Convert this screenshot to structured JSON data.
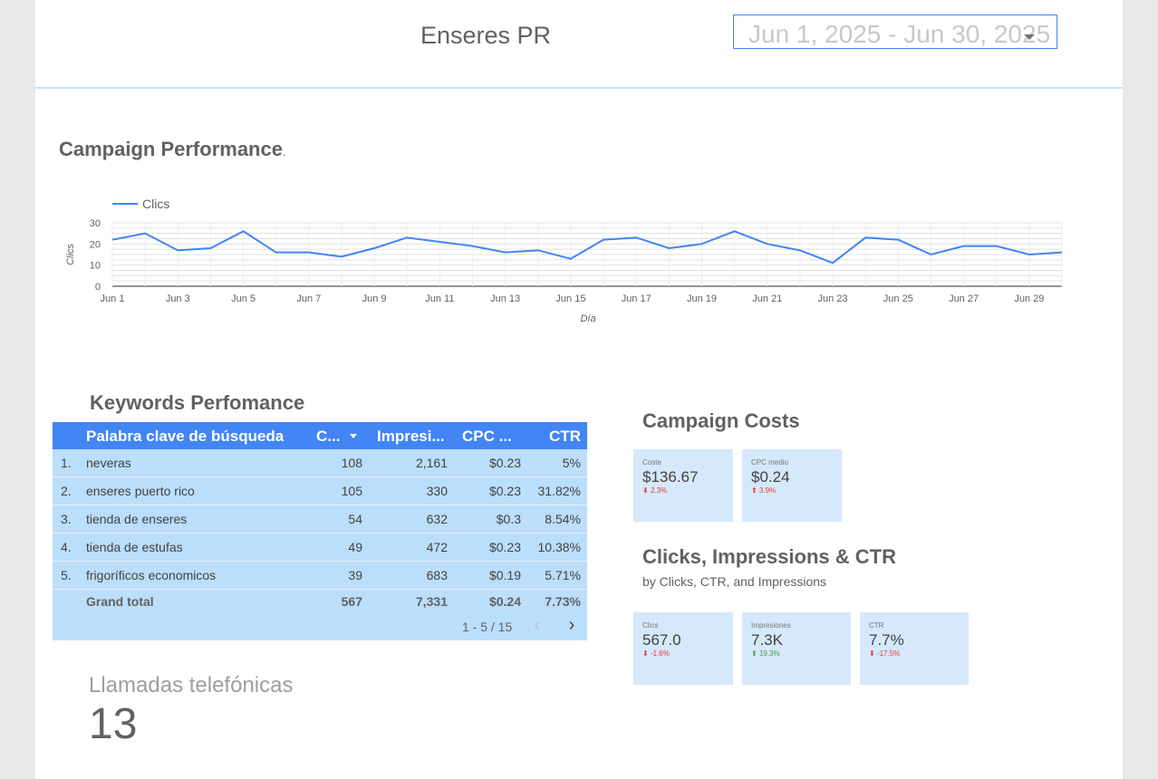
{
  "header": {
    "title": "Enseres PR",
    "date_range": "Jun 1, 2025 - Jun 30, 2025"
  },
  "performance": {
    "title": "Campaign Performance",
    "title_dot": "."
  },
  "chart_data": {
    "type": "line",
    "legend": "Clics",
    "ylabel": "Clics",
    "xlabel": "Día",
    "ylim": [
      0,
      30
    ],
    "yticks": [
      "0",
      "10",
      "20",
      "30"
    ],
    "x": [
      "Jun 1",
      "Jun 2",
      "Jun 3",
      "Jun 4",
      "Jun 5",
      "Jun 6",
      "Jun 7",
      "Jun 8",
      "Jun 9",
      "Jun 10",
      "Jun 11",
      "Jun 12",
      "Jun 13",
      "Jun 14",
      "Jun 15",
      "Jun 16",
      "Jun 17",
      "Jun 18",
      "Jun 19",
      "Jun 20",
      "Jun 21",
      "Jun 22",
      "Jun 23",
      "Jun 24",
      "Jun 25",
      "Jun 26",
      "Jun 27",
      "Jun 28",
      "Jun 29",
      "Jun 30"
    ],
    "xtick_labels": [
      "Jun 1",
      "Jun 3",
      "Jun 5",
      "Jun 7",
      "Jun 9",
      "Jun 11",
      "Jun 13",
      "Jun 15",
      "Jun 17",
      "Jun 19",
      "Jun 21",
      "Jun 23",
      "Jun 25",
      "Jun 27",
      "Jun 29"
    ],
    "series": [
      {
        "name": "Clics",
        "color": "#4285f4",
        "values": [
          22,
          25,
          17,
          18,
          26,
          16,
          16,
          14,
          18,
          23,
          21,
          19,
          16,
          17,
          13,
          22,
          23,
          18,
          20,
          26,
          20,
          17,
          11,
          23,
          22,
          15,
          19,
          19,
          15,
          16
        ]
      }
    ]
  },
  "keywords": {
    "title": "Keywords Perfomance",
    "columns": [
      "Palabra clave de búsqueda",
      "C...",
      "Impresi...",
      "CPC ...",
      "CTR"
    ],
    "rows": [
      {
        "idx": "1.",
        "keyword": "neveras",
        "clicks": "108",
        "impressions": "2,161",
        "cpc": "$0.23",
        "ctr": "5%"
      },
      {
        "idx": "2.",
        "keyword": "enseres puerto rico",
        "clicks": "105",
        "impressions": "330",
        "cpc": "$0.23",
        "ctr": "31.82%"
      },
      {
        "idx": "3.",
        "keyword": "tienda de enseres",
        "clicks": "54",
        "impressions": "632",
        "cpc": "$0.3",
        "ctr": "8.54%"
      },
      {
        "idx": "4.",
        "keyword": "tienda de estufas",
        "clicks": "49",
        "impressions": "472",
        "cpc": "$0.23",
        "ctr": "10.38%"
      },
      {
        "idx": "5.",
        "keyword": "frigoríficos economicos",
        "clicks": "39",
        "impressions": "683",
        "cpc": "$0.19",
        "ctr": "5.71%"
      }
    ],
    "total": {
      "label": "Grand total",
      "clicks": "567",
      "impressions": "7,331",
      "cpc": "$0.24",
      "ctr": "7.73%"
    },
    "pager": "1 - 5 / 15"
  },
  "calls": {
    "label": "Llamadas telefónicas",
    "value": "13"
  },
  "costs": {
    "title": "Campaign Costs",
    "cards": [
      {
        "label": "Coste",
        "value": "$136.67",
        "delta": "2.3%"
      },
      {
        "label": "CPC medio",
        "value": "$0.24",
        "delta": "3.9%"
      }
    ]
  },
  "cic": {
    "title": "Clicks, Impressions & CTR",
    "subtitle": "by Clicks, CTR, and Impressions",
    "cards": [
      {
        "label": "Clics",
        "value": "567.0",
        "delta": "-1.6%"
      },
      {
        "label": "Impresiones",
        "value": "7.3K",
        "delta": "19.3%"
      },
      {
        "label": "CTR",
        "value": "7.7%",
        "delta": "-17.5%"
      }
    ]
  },
  "colors": {
    "accent": "#4285f4",
    "table_bg": "#bbdefb",
    "card_bg": "#d6e8fb",
    "negative": "#e53935",
    "positive": "#43a047"
  }
}
